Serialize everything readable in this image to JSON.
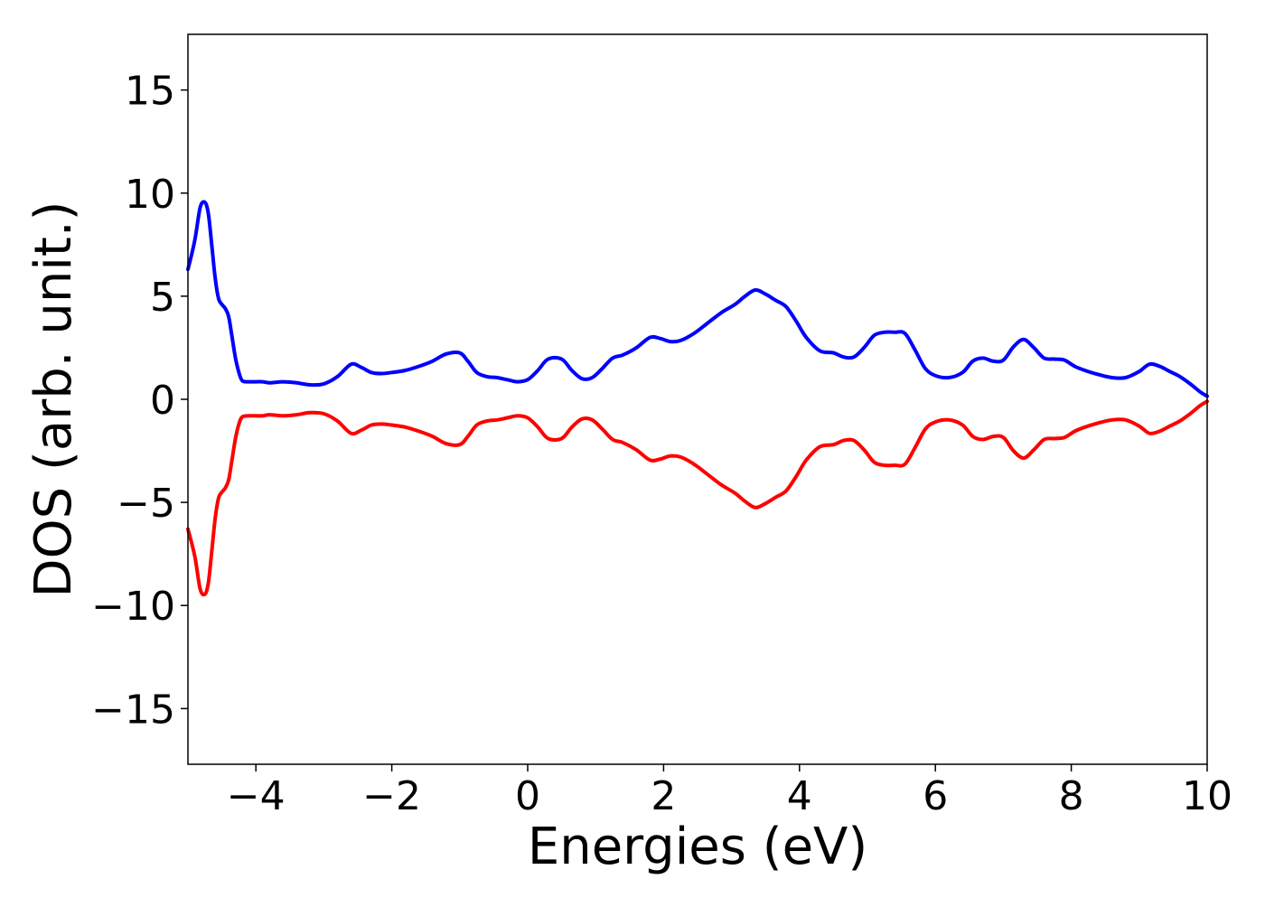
{
  "chart_data": {
    "type": "line",
    "title": "",
    "xlabel": "Energies (eV)",
    "ylabel": "DOS (arb. unit.)",
    "xlim": [
      -5,
      10
    ],
    "ylim": [
      -17.7,
      17.7
    ],
    "xticks": [
      -4,
      -2,
      0,
      2,
      4,
      6,
      8,
      10
    ],
    "xtick_labels": [
      "−4",
      "−2",
      "0",
      "2",
      "4",
      "6",
      "8",
      "10"
    ],
    "yticks": [
      15,
      10,
      5,
      0,
      -5,
      -10,
      -15
    ],
    "ytick_labels": [
      "15",
      "10",
      "5",
      "0",
      "−5",
      "−10",
      "−15"
    ],
    "grid": false,
    "legend": "none",
    "series": [
      {
        "color": "#0000ff",
        "x": [
          -5.0,
          -4.9,
          -4.82,
          -4.75,
          -4.7,
          -4.65,
          -4.6,
          -4.55,
          -4.5,
          -4.45,
          -4.4,
          -4.35,
          -4.3,
          -4.25,
          -4.2,
          -4.1,
          -4.0,
          -3.9,
          -3.8,
          -3.6,
          -3.4,
          -3.2,
          -3.0,
          -2.8,
          -2.6,
          -2.45,
          -2.3,
          -2.15,
          -2.0,
          -1.8,
          -1.6,
          -1.4,
          -1.2,
          -1.0,
          -0.88,
          -0.75,
          -0.6,
          -0.45,
          -0.3,
          -0.15,
          0.0,
          0.15,
          0.3,
          0.5,
          0.65,
          0.8,
          0.95,
          1.1,
          1.25,
          1.4,
          1.6,
          1.8,
          1.95,
          2.1,
          2.25,
          2.45,
          2.65,
          2.85,
          3.05,
          3.2,
          3.35,
          3.5,
          3.65,
          3.8,
          3.95,
          4.1,
          4.3,
          4.5,
          4.65,
          4.8,
          4.95,
          5.1,
          5.25,
          5.4,
          5.55,
          5.7,
          5.85,
          6.0,
          6.2,
          6.4,
          6.55,
          6.7,
          6.85,
          7.0,
          7.15,
          7.3,
          7.45,
          7.6,
          7.75,
          7.9,
          8.05,
          8.2,
          8.4,
          8.6,
          8.8,
          9.0,
          9.15,
          9.3,
          9.45,
          9.6,
          9.75,
          9.9,
          10.0
        ],
        "y": [
          6.3,
          7.7,
          9.3,
          9.55,
          9.0,
          7.5,
          5.9,
          4.9,
          4.6,
          4.4,
          4.0,
          3.0,
          2.0,
          1.3,
          0.9,
          0.85,
          0.85,
          0.85,
          0.8,
          0.85,
          0.8,
          0.7,
          0.75,
          1.1,
          1.7,
          1.55,
          1.3,
          1.25,
          1.3,
          1.4,
          1.6,
          1.85,
          2.2,
          2.25,
          1.85,
          1.3,
          1.1,
          1.05,
          0.95,
          0.85,
          0.95,
          1.4,
          1.95,
          1.95,
          1.4,
          1.0,
          1.05,
          1.5,
          2.0,
          2.15,
          2.5,
          3.0,
          2.95,
          2.8,
          2.85,
          3.2,
          3.7,
          4.2,
          4.6,
          5.0,
          5.3,
          5.1,
          4.8,
          4.5,
          3.8,
          3.0,
          2.35,
          2.25,
          2.05,
          2.05,
          2.5,
          3.1,
          3.25,
          3.25,
          3.2,
          2.4,
          1.5,
          1.15,
          1.05,
          1.3,
          1.85,
          2.0,
          1.85,
          1.9,
          2.55,
          2.9,
          2.5,
          2.0,
          1.95,
          1.9,
          1.6,
          1.4,
          1.2,
          1.05,
          1.05,
          1.35,
          1.7,
          1.6,
          1.35,
          1.1,
          0.75,
          0.35,
          0.15
        ]
      },
      {
        "color": "#ff0000",
        "x": [
          -5.0,
          -4.9,
          -4.82,
          -4.75,
          -4.7,
          -4.65,
          -4.6,
          -4.55,
          -4.5,
          -4.45,
          -4.4,
          -4.35,
          -4.3,
          -4.25,
          -4.2,
          -4.1,
          -4.0,
          -3.9,
          -3.8,
          -3.6,
          -3.4,
          -3.2,
          -3.0,
          -2.8,
          -2.6,
          -2.45,
          -2.3,
          -2.15,
          -2.0,
          -1.8,
          -1.6,
          -1.4,
          -1.2,
          -1.0,
          -0.88,
          -0.75,
          -0.6,
          -0.45,
          -0.3,
          -0.15,
          0.0,
          0.15,
          0.3,
          0.5,
          0.65,
          0.8,
          0.95,
          1.1,
          1.25,
          1.4,
          1.6,
          1.8,
          1.95,
          2.1,
          2.25,
          2.45,
          2.65,
          2.85,
          3.05,
          3.2,
          3.35,
          3.5,
          3.65,
          3.8,
          3.95,
          4.1,
          4.3,
          4.5,
          4.65,
          4.8,
          4.95,
          5.1,
          5.25,
          5.4,
          5.55,
          5.7,
          5.85,
          6.0,
          6.2,
          6.4,
          6.55,
          6.7,
          6.85,
          7.0,
          7.15,
          7.3,
          7.45,
          7.6,
          7.75,
          7.9,
          8.05,
          8.2,
          8.4,
          8.6,
          8.8,
          9.0,
          9.15,
          9.3,
          9.45,
          9.6,
          9.75,
          9.9,
          10.0
        ],
        "y": [
          -6.3,
          -7.6,
          -9.2,
          -9.45,
          -8.9,
          -7.4,
          -5.8,
          -4.8,
          -4.5,
          -4.3,
          -3.9,
          -2.9,
          -1.9,
          -1.2,
          -0.85,
          -0.8,
          -0.8,
          -0.8,
          -0.75,
          -0.8,
          -0.75,
          -0.65,
          -0.7,
          -1.05,
          -1.65,
          -1.5,
          -1.25,
          -1.2,
          -1.25,
          -1.35,
          -1.55,
          -1.8,
          -2.15,
          -2.2,
          -1.8,
          -1.25,
          -1.05,
          -1.0,
          -0.9,
          -0.8,
          -0.9,
          -1.35,
          -1.9,
          -1.9,
          -1.35,
          -0.95,
          -1.0,
          -1.45,
          -1.95,
          -2.1,
          -2.45,
          -2.95,
          -2.9,
          -2.75,
          -2.8,
          -3.15,
          -3.65,
          -4.15,
          -4.55,
          -4.95,
          -5.25,
          -5.05,
          -4.75,
          -4.45,
          -3.75,
          -2.95,
          -2.3,
          -2.2,
          -2.0,
          -2.0,
          -2.45,
          -3.05,
          -3.2,
          -3.2,
          -3.15,
          -2.35,
          -1.45,
          -1.1,
          -1.0,
          -1.25,
          -1.8,
          -1.95,
          -1.8,
          -1.85,
          -2.5,
          -2.85,
          -2.45,
          -1.95,
          -1.9,
          -1.85,
          -1.55,
          -1.35,
          -1.15,
          -1.0,
          -1.0,
          -1.3,
          -1.65,
          -1.55,
          -1.3,
          -1.05,
          -0.7,
          -0.3,
          -0.1
        ]
      }
    ]
  }
}
